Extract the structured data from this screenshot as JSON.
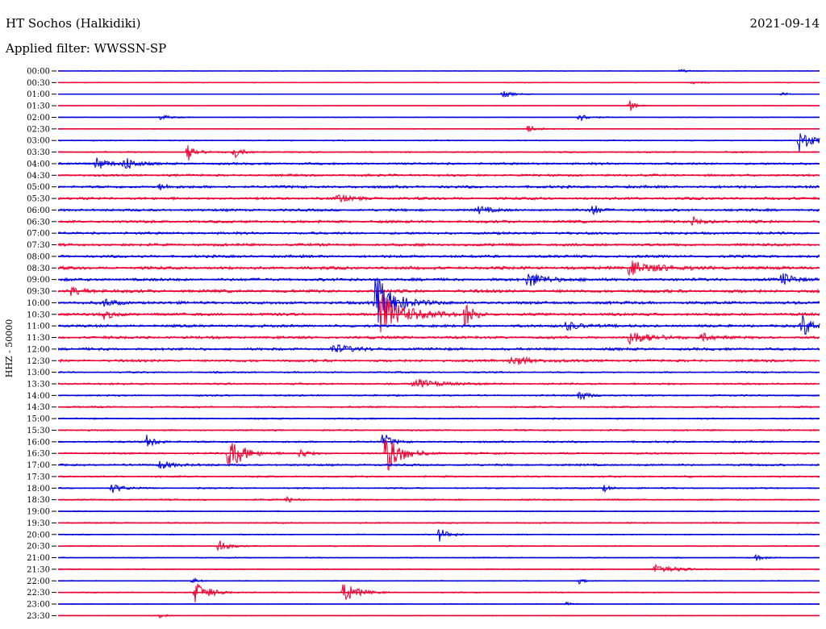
{
  "header": {
    "title": "HT Sochos (Halkidiki)",
    "date": "2021-09-14",
    "filter": "Applied filter: WWSSN-SP"
  },
  "axis": {
    "side_label": "HHZ - 50000"
  },
  "chart_data": {
    "type": "line",
    "rows": [
      "00:00",
      "00:30",
      "01:00",
      "01:30",
      "02:00",
      "02:30",
      "03:00",
      "03:30",
      "04:00",
      "04:30",
      "05:00",
      "05:30",
      "06:00",
      "06:30",
      "07:00",
      "07:30",
      "08:00",
      "08:30",
      "09:00",
      "09:30",
      "10:00",
      "10:30",
      "11:00",
      "11:30",
      "12:00",
      "12:30",
      "13:00",
      "13:30",
      "14:00",
      "14:30",
      "15:00",
      "15:30",
      "16:00",
      "16:30",
      "17:00",
      "17:30",
      "18:00",
      "18:30",
      "19:00",
      "19:30",
      "20:00",
      "20:30",
      "21:00",
      "21:30",
      "22:00",
      "22:30",
      "23:00",
      "23:30"
    ],
    "colors": [
      "#0000dd",
      "#ee0033"
    ],
    "row_duration_min": 30,
    "noise_level": [
      0.3,
      0.4,
      0.3,
      0.3,
      0.4,
      0.4,
      0.6,
      0.8,
      1.2,
      1.2,
      1.4,
      1.4,
      1.3,
      1.4,
      1.3,
      1.4,
      1.4,
      1.6,
      1.5,
      1.6,
      1.5,
      1.5,
      1.4,
      1.4,
      1.4,
      1.3,
      0.9,
      1.0,
      0.9,
      0.9,
      0.8,
      0.8,
      1.0,
      1.0,
      1.1,
      0.9,
      0.8,
      0.8,
      0.6,
      0.7,
      0.6,
      0.6,
      0.6,
      0.6,
      0.5,
      0.6,
      0.4,
      0.4
    ],
    "events": [
      {
        "row": 0,
        "minute": 24.5,
        "amp": 3,
        "dur": 0.4
      },
      {
        "row": 1,
        "minute": 25.0,
        "amp": 2,
        "dur": 0.6
      },
      {
        "row": 2,
        "minute": 17.5,
        "amp": 4,
        "dur": 0.8
      },
      {
        "row": 2,
        "minute": 28.5,
        "amp": 3,
        "dur": 0.4
      },
      {
        "row": 3,
        "minute": 22.5,
        "amp": 8,
        "dur": 0.4
      },
      {
        "row": 4,
        "minute": 4.0,
        "amp": 3,
        "dur": 0.8
      },
      {
        "row": 4,
        "minute": 20.5,
        "amp": 5,
        "dur": 0.7
      },
      {
        "row": 5,
        "minute": 18.5,
        "amp": 4,
        "dur": 0.9
      },
      {
        "row": 6,
        "minute": 29.2,
        "amp": 14,
        "dur": 0.9
      },
      {
        "row": 7,
        "minute": 5.1,
        "amp": 12,
        "dur": 0.5
      },
      {
        "row": 7,
        "minute": 6.9,
        "amp": 10,
        "dur": 0.5
      },
      {
        "row": 8,
        "minute": 1.5,
        "amp": 8,
        "dur": 0.8
      },
      {
        "row": 8,
        "minute": 2.6,
        "amp": 10,
        "dur": 0.6
      },
      {
        "row": 10,
        "minute": 4.0,
        "amp": 4,
        "dur": 0.6
      },
      {
        "row": 11,
        "minute": 11.0,
        "amp": 5,
        "dur": 0.8
      },
      {
        "row": 12,
        "minute": 16.5,
        "amp": 5,
        "dur": 0.8
      },
      {
        "row": 12,
        "minute": 21.0,
        "amp": 9,
        "dur": 0.5
      },
      {
        "row": 13,
        "minute": 25.0,
        "amp": 6,
        "dur": 0.8
      },
      {
        "row": 17,
        "minute": 22.5,
        "amp": 9,
        "dur": 1.8
      },
      {
        "row": 18,
        "minute": 18.5,
        "amp": 10,
        "dur": 1.2
      },
      {
        "row": 18,
        "minute": 28.5,
        "amp": 8,
        "dur": 0.8
      },
      {
        "row": 19,
        "minute": 0.5,
        "amp": 5,
        "dur": 1.0
      },
      {
        "row": 20,
        "minute": 12.5,
        "amp": 34,
        "dur": 1.2
      },
      {
        "row": 20,
        "minute": 1.8,
        "amp": 5,
        "dur": 0.8
      },
      {
        "row": 21,
        "minute": 12.7,
        "amp": 26,
        "dur": 1.6
      },
      {
        "row": 21,
        "minute": 16.0,
        "amp": 14,
        "dur": 0.6
      },
      {
        "row": 21,
        "minute": 1.8,
        "amp": 6,
        "dur": 0.6
      },
      {
        "row": 22,
        "minute": 29.3,
        "amp": 16,
        "dur": 0.6
      },
      {
        "row": 22,
        "minute": 20.0,
        "amp": 6,
        "dur": 1.0
      },
      {
        "row": 23,
        "minute": 22.5,
        "amp": 8,
        "dur": 1.5
      },
      {
        "row": 23,
        "minute": 25.3,
        "amp": 7,
        "dur": 0.6
      },
      {
        "row": 24,
        "minute": 10.8,
        "amp": 6,
        "dur": 1.2
      },
      {
        "row": 25,
        "minute": 17.8,
        "amp": 6,
        "dur": 1.4
      },
      {
        "row": 27,
        "minute": 14.0,
        "amp": 7,
        "dur": 1.5
      },
      {
        "row": 28,
        "minute": 20.5,
        "amp": 7,
        "dur": 0.6
      },
      {
        "row": 32,
        "minute": 3.5,
        "amp": 8,
        "dur": 0.6
      },
      {
        "row": 32,
        "minute": 12.8,
        "amp": 12,
        "dur": 0.5
      },
      {
        "row": 33,
        "minute": 6.7,
        "amp": 22,
        "dur": 1.0
      },
      {
        "row": 33,
        "minute": 12.9,
        "amp": 25,
        "dur": 1.0
      },
      {
        "row": 33,
        "minute": 9.5,
        "amp": 9,
        "dur": 0.4
      },
      {
        "row": 34,
        "minute": 4.0,
        "amp": 5,
        "dur": 1.0
      },
      {
        "row": 36,
        "minute": 2.1,
        "amp": 6,
        "dur": 0.7
      },
      {
        "row": 36,
        "minute": 21.5,
        "amp": 4,
        "dur": 0.5
      },
      {
        "row": 37,
        "minute": 9.0,
        "amp": 4,
        "dur": 0.5
      },
      {
        "row": 40,
        "minute": 15.0,
        "amp": 9,
        "dur": 0.6
      },
      {
        "row": 41,
        "minute": 6.3,
        "amp": 9,
        "dur": 0.6
      },
      {
        "row": 42,
        "minute": 27.5,
        "amp": 3,
        "dur": 0.6
      },
      {
        "row": 43,
        "minute": 23.5,
        "amp": 7,
        "dur": 1.2
      },
      {
        "row": 44,
        "minute": 5.3,
        "amp": 4,
        "dur": 0.4
      },
      {
        "row": 44,
        "minute": 20.5,
        "amp": 4,
        "dur": 0.4
      },
      {
        "row": 45,
        "minute": 5.4,
        "amp": 14,
        "dur": 0.9
      },
      {
        "row": 45,
        "minute": 11.2,
        "amp": 14,
        "dur": 0.9
      },
      {
        "row": 46,
        "minute": 20.0,
        "amp": 2,
        "dur": 0.5
      },
      {
        "row": 47,
        "minute": 4.0,
        "amp": 3,
        "dur": 0.4
      }
    ]
  }
}
